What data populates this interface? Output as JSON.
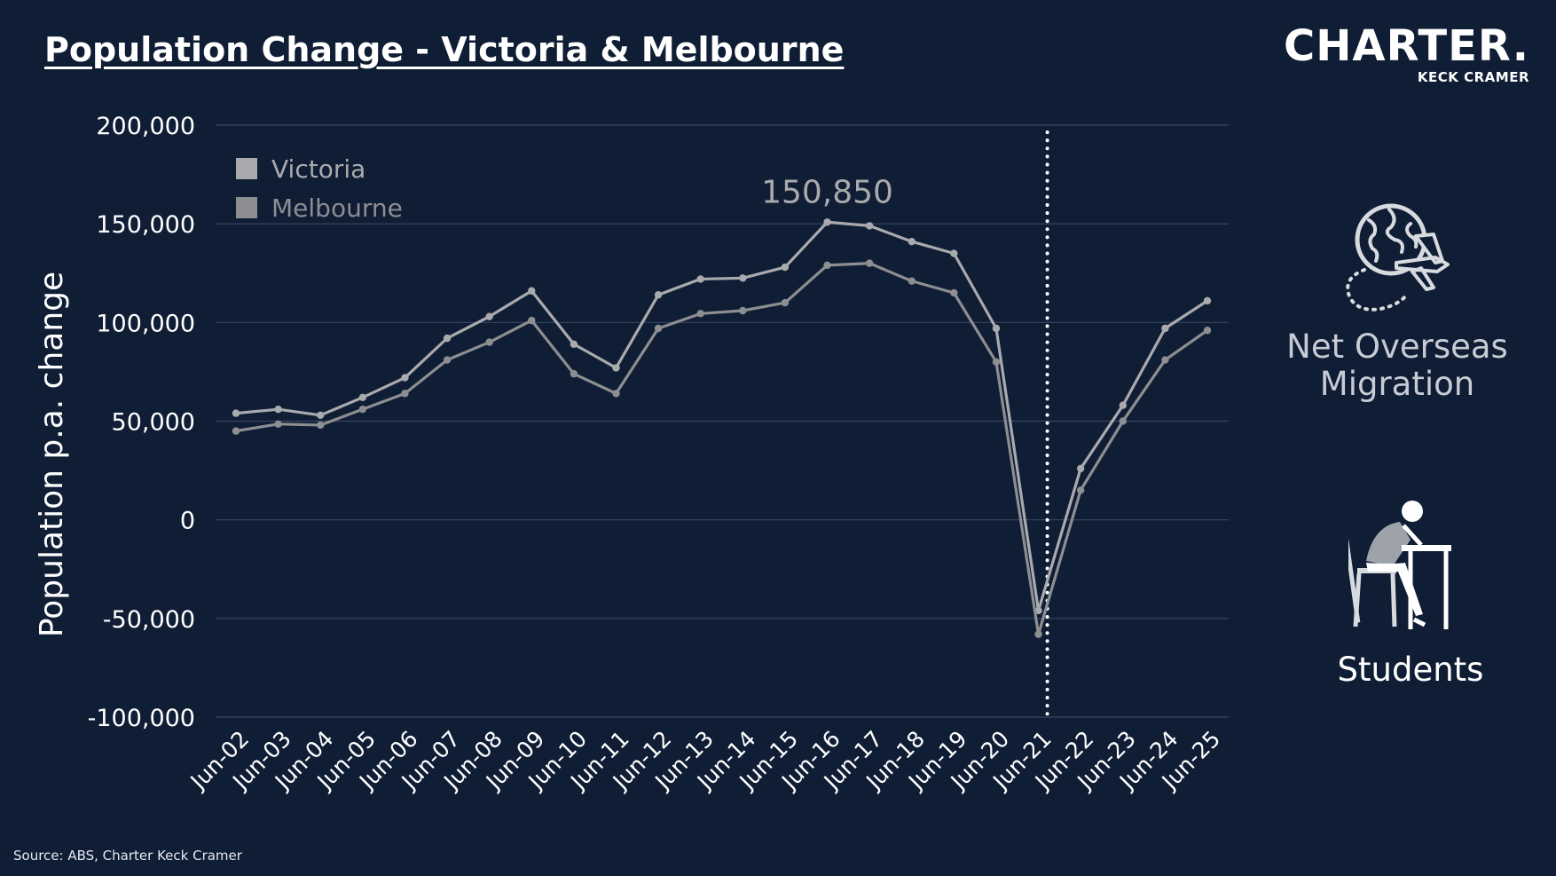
{
  "page": {
    "title": "Population Change - Victoria & Melbourne",
    "logo_main": "CHARTER.",
    "logo_sub": "KECK CRAMER",
    "source": "Source: ABS, Charter Keck Cramer",
    "side_labels": {
      "nom": "Net Overseas Migration",
      "students": "Students"
    },
    "icons": [
      "globe-plane-icon",
      "student-studying-icon"
    ]
  },
  "chart_data": {
    "type": "line",
    "ylabel": "Population p.a. change",
    "ylim": [
      -100000,
      200000
    ],
    "yticks": [
      200000,
      150000,
      100000,
      50000,
      0,
      -50000,
      -100000
    ],
    "ytick_labels": [
      "200,000",
      "150,000",
      "100,000",
      "50,000",
      "0",
      "-50,000",
      "-100,000"
    ],
    "categories": [
      "Jun-02",
      "Jun-03",
      "Jun-04",
      "Jun-05",
      "Jun-06",
      "Jun-07",
      "Jun-08",
      "Jun-09",
      "Jun-10",
      "Jun-11",
      "Jun-12",
      "Jun-13",
      "Jun-14",
      "Jun-15",
      "Jun-16",
      "Jun-17",
      "Jun-18",
      "Jun-19",
      "Jun-20",
      "Jun-21",
      "Jun-22",
      "Jun-23",
      "Jun-24",
      "Jun-25"
    ],
    "series": [
      {
        "name": "Victoria",
        "color": "#a9aaad",
        "values": [
          54000,
          56000,
          53000,
          62000,
          72000,
          92000,
          103000,
          116000,
          89000,
          77000,
          114000,
          122000,
          122500,
          128000,
          150850,
          149000,
          141000,
          135000,
          97000,
          -46000,
          26000,
          58000,
          97000,
          111000
        ]
      },
      {
        "name": "Melbourne",
        "color": "#8d8e91",
        "values": [
          45000,
          48500,
          48000,
          56000,
          64000,
          81000,
          90000,
          101000,
          74000,
          64000,
          97000,
          104500,
          106000,
          110000,
          129000,
          130000,
          121000,
          115000,
          80000,
          -58000,
          15000,
          50000,
          81000,
          96000
        ]
      }
    ],
    "annotations": [
      {
        "text": "150,850",
        "category": "Jun-16",
        "value": 150850
      }
    ],
    "reference_line": {
      "category": "Jun-21",
      "style": "dotted",
      "color": "#ffffff"
    },
    "grid": true,
    "legend_position": "top-left"
  }
}
